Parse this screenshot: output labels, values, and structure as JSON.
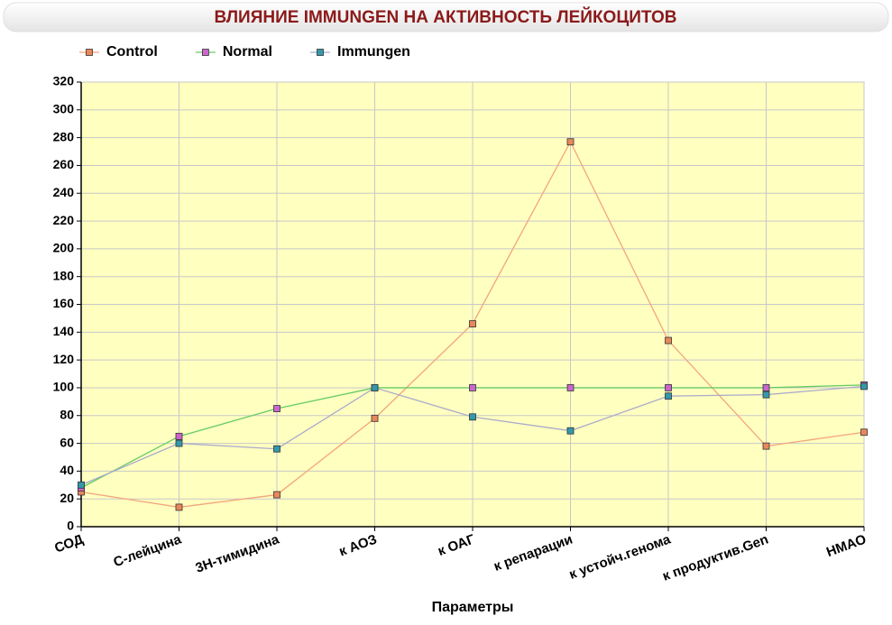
{
  "chart_data": {
    "type": "line",
    "title": "ВЛИЯНИЕ IMMUNGEN НА АКТИВНОСТЬ ЛЕЙКОЦИТОВ",
    "x_label": "Параметры",
    "categories": [
      "СОД",
      "С-лейцина",
      "3Н-тимидина",
      "к АОЗ",
      "к ОАГ",
      "к репарации",
      "к устойч.генома",
      "к продуктив.Gen",
      "НМАО"
    ],
    "series": [
      {
        "name": "Control",
        "color": "#f4a57c",
        "marker_color": "#e8885a",
        "values": [
          25,
          14,
          23,
          78,
          146,
          277,
          134,
          58,
          68
        ]
      },
      {
        "name": "Normal",
        "color": "#66cc66",
        "marker_color": "#cc66cc",
        "values": [
          28,
          65,
          85,
          100,
          100,
          100,
          100,
          100,
          102
        ]
      },
      {
        "name": "Immungen",
        "color": "#aaaacc",
        "marker_color": "#3399aa",
        "values": [
          30,
          60,
          56,
          100,
          79,
          69,
          94,
          95,
          101
        ]
      }
    ],
    "ylim": [
      0,
      320
    ],
    "yticks": [
      0,
      20,
      40,
      60,
      80,
      100,
      120,
      140,
      160,
      180,
      200,
      220,
      240,
      260,
      280,
      300,
      320
    ],
    "grid": true,
    "legend": "top-left",
    "plot_background": "#ffffc0"
  }
}
